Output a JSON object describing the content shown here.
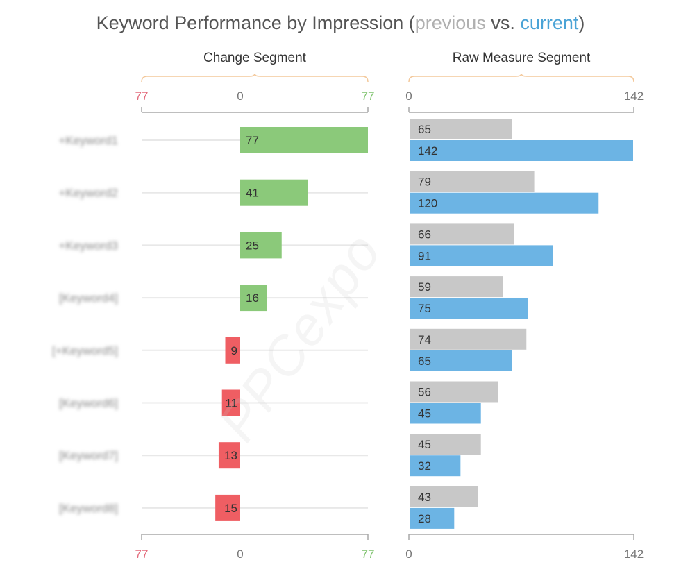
{
  "title": {
    "main": "Keyword Performance by Impression (",
    "previous": "previous",
    "vs": " vs. ",
    "current": "current",
    "close": ")"
  },
  "watermark": "PPCexpo",
  "chart_data": [
    {
      "type": "bar",
      "title": "Change Segment",
      "categories": [
        "+Keyword1",
        "+Keyword2",
        "+Keyword3",
        "[Keyword4]",
        "[+Keyword5]",
        "[Keyword6]",
        "[Keyword7]",
        "[Keyword8]"
      ],
      "values": [
        77,
        41,
        25,
        16,
        -9,
        -11,
        -13,
        -15
      ],
      "value_labels": [
        "77",
        "41",
        "25",
        "16",
        "9",
        "11",
        "13",
        "15"
      ],
      "xlim": [
        -77,
        77
      ],
      "axis_ticks": [
        "77",
        "0",
        "77"
      ],
      "colors": {
        "positive": "#8bc97a",
        "negative": "#ef5e63"
      }
    },
    {
      "type": "bar",
      "title": "Raw Measure Segment",
      "categories": [
        "+Keyword1",
        "+Keyword2",
        "+Keyword3",
        "[Keyword4]",
        "[+Keyword5]",
        "[Keyword6]",
        "[Keyword7]",
        "[Keyword8]"
      ],
      "series": [
        {
          "name": "previous",
          "values": [
            65,
            79,
            66,
            59,
            74,
            56,
            45,
            43
          ],
          "color": "#c8c8c8"
        },
        {
          "name": "current",
          "values": [
            142,
            120,
            91,
            75,
            65,
            45,
            32,
            28
          ],
          "color": "#6cb4e4"
        }
      ],
      "xlim": [
        0,
        142
      ],
      "axis_ticks": [
        "0",
        "142"
      ]
    }
  ],
  "colors": {
    "brace": "#f3c89a",
    "axis": "#a8a8a8",
    "grid": "#e8e8e8",
    "negative_tick": "#e36b7c",
    "positive_tick": "#7dc26c",
    "neutral_tick": "#777777",
    "text": "#333333"
  }
}
